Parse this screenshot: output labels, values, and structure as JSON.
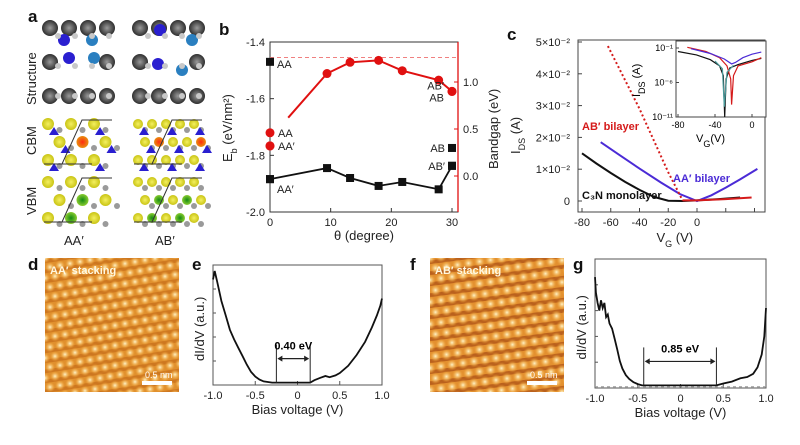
{
  "panel_labels": [
    "a",
    "b",
    "c",
    "d",
    "e",
    "f",
    "g"
  ],
  "panel_a": {
    "row_labels": [
      "Structure",
      "CBM",
      "VBM"
    ],
    "column_labels": [
      "AA′",
      "AB′"
    ],
    "colors": {
      "carbon": "#4a4a4a",
      "nitrogen": "#2a1fd0",
      "n_light": "#2a7fc0",
      "hydrogen": "#c8c8c8",
      "density_yellow": "#e6e21a",
      "density_red": "#e02010",
      "density_green": "#1f8a1f"
    }
  },
  "panel_d": {
    "label": "AA′ stacking",
    "scale_bar": "0.5 nm"
  },
  "panel_f": {
    "label": "AB′ stacking",
    "scale_bar": "0.5 nm"
  },
  "chart_data": [
    {
      "id": "b",
      "type": "scatter-line",
      "xlabel": "θ (degree)",
      "ylabel": {
        "main": "E",
        "sub": "b",
        "rest": " (eV/nm²)"
      },
      "y2label": "Bandgap (eV)",
      "xlim": [
        -0.5,
        32
      ],
      "ylim": [
        -2.0,
        -1.4
      ],
      "y2lim": [
        -0.38,
        1.43
      ],
      "xticks": [
        "0",
        "10",
        "20",
        "30"
      ],
      "yticks": [
        "-1.4",
        "-1.6",
        "-1.8",
        "-2.0"
      ],
      "y2ticks": [
        "0.0",
        "0.5",
        "1.0"
      ],
      "reference_line_bandgap": 1.26,
      "colors": {
        "binding": "#111111",
        "bandgap": "#e01010"
      },
      "binding_energy": {
        "line": [
          [
            0,
            -1.884
          ],
          [
            9.4,
            -1.845
          ],
          [
            13.2,
            -1.88
          ],
          [
            17.9,
            -1.908
          ],
          [
            21.8,
            -1.894
          ],
          [
            27.8,
            -1.92
          ],
          [
            30,
            -1.837
          ]
        ],
        "labeled_points": [
          {
            "x": 0,
            "y": -1.47,
            "label": "AA"
          },
          {
            "x": 0,
            "y": -1.884,
            "label": "AA′"
          },
          {
            "x": 30,
            "y": -1.774,
            "label": "AB"
          },
          {
            "x": 30,
            "y": -1.837,
            "label": "AB′"
          }
        ]
      },
      "bandgap": {
        "line": [
          [
            0,
            0.32
          ],
          [
            9.4,
            1.09
          ],
          [
            13.2,
            1.21
          ],
          [
            17.9,
            1.23
          ],
          [
            21.8,
            1.12
          ],
          [
            27.8,
            1.02
          ],
          [
            30,
            0.9
          ]
        ],
        "labeled_points": [
          {
            "x": 0,
            "y": 0.46,
            "label": "AA"
          },
          {
            "x": 0,
            "y": 0.32,
            "label": "AA′"
          },
          {
            "x": 30,
            "y": 0.9,
            "label": "AB′\nAB"
          }
        ]
      }
    },
    {
      "id": "c",
      "type": "line",
      "xlabel": {
        "main": "V",
        "sub": "G",
        "rest": " (V)"
      },
      "ylabel": {
        "main": "I",
        "sub": "DS",
        "rest": " (A)"
      },
      "xlim": [
        -83,
        47
      ],
      "ylim": [
        -0.0035,
        0.05
      ],
      "xticks": [
        "-80",
        "-60",
        "-40",
        "-20",
        "0"
      ],
      "yticks": [
        "5×10⁻²",
        "4×10⁻²",
        "3×10⁻²",
        "2×10⁻²",
        "1×10⁻²",
        "0"
      ],
      "series": [
        {
          "name": "C₃N monolayer",
          "color": "#111111",
          "style": "solid",
          "points": [
            [
              -80,
              0.015
            ],
            [
              -70,
              0.0118
            ],
            [
              -60,
              0.0088
            ],
            [
              -50,
              0.006
            ],
            [
              -40,
              0.0035
            ],
            [
              -30,
              0.0013
            ],
            [
              -20,
              0.0001
            ],
            [
              -10,
              0
            ],
            [
              0,
              0.0002
            ],
            [
              15,
              0.0006
            ],
            [
              30,
              0.0011
            ]
          ]
        },
        {
          "name": "AA′ bilayer",
          "color": "#4b2bd6",
          "style": "solid",
          "points": [
            [
              -67,
              0.0185
            ],
            [
              -55,
              0.0148
            ],
            [
              -40,
              0.0102
            ],
            [
              -25,
              0.0058
            ],
            [
              -12,
              0.0022
            ],
            [
              0,
              0
            ],
            [
              10,
              0.0018
            ],
            [
              20,
              0.0042
            ],
            [
              30,
              0.0068
            ],
            [
              42,
              0.0101
            ]
          ]
        },
        {
          "name": "AB′ bilayer",
          "color": "#d51a1a",
          "style": "dotted",
          "points": [
            [
              -62,
              0.0487
            ],
            [
              -50,
              0.038
            ],
            [
              -40,
              0.029
            ],
            [
              -30,
              0.019
            ],
            [
              -20,
              0.009
            ],
            [
              -10,
              0.0002
            ]
          ]
        },
        {
          "name": "",
          "color": "#d51a1a",
          "style": "solid",
          "points": [
            [
              -10,
              0.0002
            ],
            [
              0,
              0.0002
            ],
            [
              20,
              0.0006
            ],
            [
              38,
              0.0011
            ]
          ]
        }
      ],
      "inset": {
        "type": "line",
        "xlabel": {
          "main": "V",
          "sub": "G",
          "rest": "(V)"
        },
        "ylabel": {
          "main": "I",
          "sub": "DS",
          "rest": " (A)"
        },
        "xlim": [
          -86,
          12
        ],
        "ylim_log10": [
          -11,
          0
        ],
        "yscale": "log",
        "xticks": [
          "-80",
          "-40",
          "0"
        ],
        "yticks": [
          "10⁻¹",
          "10⁻⁶",
          "10⁻¹¹"
        ],
        "series": [
          {
            "color": "#111111",
            "points_log10": [
              [
                -80,
                -1.5
              ],
              [
                -60,
                -2.0
              ],
              [
                -45,
                -2.7
              ],
              [
                -35,
                -3.6
              ],
              [
                -31,
                -5
              ],
              [
                -29.5,
                -11
              ],
              [
                -28,
                -5.5
              ],
              [
                -24,
                -3.9
              ],
              [
                -15,
                -3.4
              ],
              [
                0,
                -2.8
              ],
              [
                10,
                -2.5
              ]
            ]
          },
          {
            "color": "#d51a1a",
            "points_log10": [
              [
                -70,
                -0.9
              ],
              [
                -50,
                -1.5
              ],
              [
                -35,
                -2.4
              ],
              [
                -27,
                -3.6
              ],
              [
                -23,
                -5.5
              ],
              [
                -22,
                -9.2
              ],
              [
                -20,
                -5
              ],
              [
                -15,
                -3.6
              ],
              [
                0,
                -3.0
              ],
              [
                10,
                -2.4
              ]
            ]
          },
          {
            "color": "#4b2bd6",
            "points_log10": [
              [
                -66,
                -1.1
              ],
              [
                -45,
                -1.8
              ],
              [
                -30,
                -2.6
              ],
              [
                -22,
                -3.3
              ],
              [
                -18,
                -3.1
              ],
              [
                -10,
                -2.4
              ],
              [
                0,
                -1.9
              ],
              [
                10,
                -1.6
              ]
            ]
          },
          {
            "color": "#4a9a9a",
            "points_log10": [
              [
                -40,
                -2.9
              ],
              [
                -32,
                -4
              ],
              [
                -30,
                -9.5
              ],
              [
                -27,
                -4.5
              ],
              [
                -20,
                -3.5
              ]
            ]
          }
        ]
      }
    },
    {
      "id": "e",
      "type": "line",
      "xlabel": "Bias voltage (V)",
      "ylabel": "dI/dV (a.u.)",
      "xlim": [
        -1.0,
        1.0
      ],
      "ylim": [
        0,
        1
      ],
      "xticks": [
        "-1.0",
        "-0.5",
        "0",
        "0.5",
        "1.0"
      ],
      "gap_annotation": {
        "text": "0.40 eV",
        "from": -0.25,
        "to": 0.15
      },
      "points": [
        [
          -1.0,
          0.88
        ],
        [
          -0.98,
          0.95
        ],
        [
          -0.95,
          0.86
        ],
        [
          -0.9,
          0.7
        ],
        [
          -0.85,
          0.58
        ],
        [
          -0.8,
          0.46
        ],
        [
          -0.75,
          0.38
        ],
        [
          -0.7,
          0.31
        ],
        [
          -0.65,
          0.24
        ],
        [
          -0.6,
          0.17
        ],
        [
          -0.55,
          0.11
        ],
        [
          -0.5,
          0.07
        ],
        [
          -0.45,
          0.045
        ],
        [
          -0.4,
          0.03
        ],
        [
          -0.3,
          0.02
        ],
        [
          -0.2,
          0.02
        ],
        [
          0,
          0.02
        ],
        [
          0.15,
          0.02
        ],
        [
          0.2,
          0.04
        ],
        [
          0.27,
          0.06
        ],
        [
          0.33,
          0.075
        ],
        [
          0.38,
          0.065
        ],
        [
          0.45,
          0.08
        ],
        [
          0.5,
          0.1
        ],
        [
          0.6,
          0.16
        ],
        [
          0.7,
          0.25
        ],
        [
          0.8,
          0.36
        ],
        [
          0.88,
          0.48
        ],
        [
          0.94,
          0.58
        ],
        [
          0.98,
          0.66
        ],
        [
          1.0,
          0.72
        ]
      ]
    },
    {
      "id": "g",
      "type": "line",
      "xlabel": "Bias voltage (V)",
      "ylabel": "dI/dV (a.u.)",
      "xlim": [
        -1.0,
        1.0
      ],
      "ylim": [
        0,
        1
      ],
      "xticks": [
        "-1.0",
        "-0.5",
        "0",
        "0.5",
        "1.0"
      ],
      "baseline_dashed": 0.01,
      "gap_annotation": {
        "text": "0.85 eV",
        "from": -0.43,
        "to": 0.42
      },
      "points": [
        [
          -1.0,
          0.86
        ],
        [
          -0.99,
          0.74
        ],
        [
          -0.97,
          0.66
        ],
        [
          -0.95,
          0.6
        ],
        [
          -0.93,
          0.68
        ],
        [
          -0.91,
          0.62
        ],
        [
          -0.89,
          0.66
        ],
        [
          -0.87,
          0.55
        ],
        [
          -0.85,
          0.57
        ],
        [
          -0.83,
          0.5
        ],
        [
          -0.8,
          0.46
        ],
        [
          -0.77,
          0.38
        ],
        [
          -0.74,
          0.3
        ],
        [
          -0.71,
          0.21
        ],
        [
          -0.68,
          0.15
        ],
        [
          -0.64,
          0.1
        ],
        [
          -0.6,
          0.07
        ],
        [
          -0.55,
          0.045
        ],
        [
          -0.5,
          0.03
        ],
        [
          -0.45,
          0.02
        ],
        [
          -0.3,
          0.02
        ],
        [
          0,
          0.02
        ],
        [
          0.3,
          0.02
        ],
        [
          0.42,
          0.02
        ],
        [
          0.5,
          0.035
        ],
        [
          0.6,
          0.05
        ],
        [
          0.7,
          0.075
        ],
        [
          0.78,
          0.085
        ],
        [
          0.85,
          0.11
        ],
        [
          0.9,
          0.16
        ],
        [
          0.95,
          0.26
        ],
        [
          0.98,
          0.4
        ],
        [
          1.0,
          0.62
        ]
      ]
    }
  ]
}
